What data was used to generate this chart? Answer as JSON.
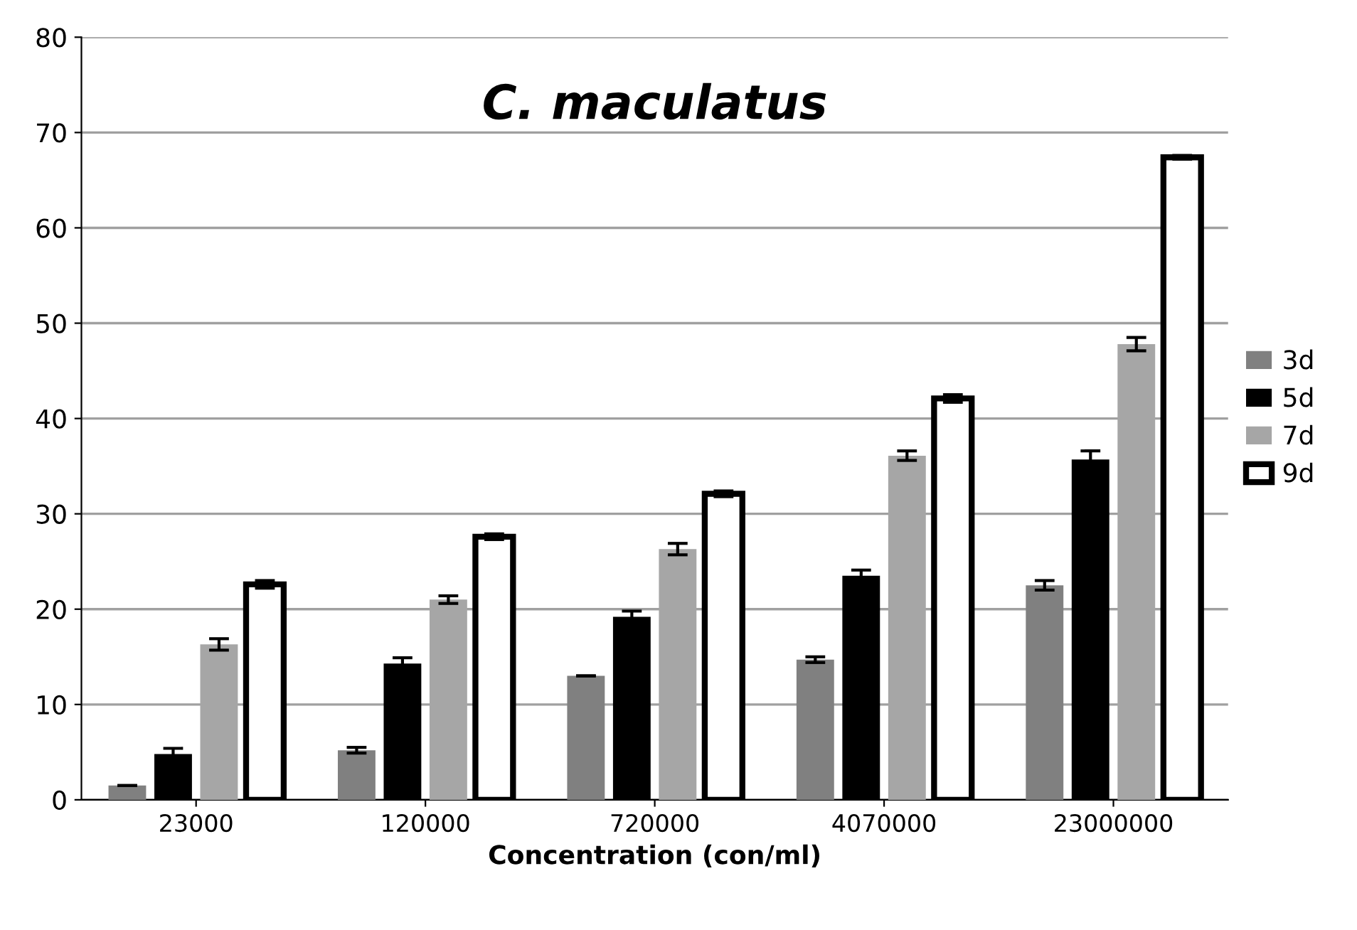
{
  "chart_data": {
    "type": "bar",
    "title": "C. maculatus",
    "xlabel": "Concentration (con/ml)",
    "categories": [
      "23000",
      "120000",
      "720000",
      "4070000",
      "23000000"
    ],
    "series": [
      {
        "name": "3d",
        "color": "#808080",
        "values": [
          1.5,
          5.2,
          13.0,
          14.7,
          22.5
        ],
        "errors": [
          null,
          0.3,
          null,
          0.3,
          0.5
        ]
      },
      {
        "name": "5d",
        "color": "#000000",
        "values": [
          4.8,
          14.3,
          19.2,
          23.5,
          35.7
        ],
        "errors": [
          0.6,
          0.6,
          0.6,
          0.6,
          0.9
        ]
      },
      {
        "name": "7d",
        "color": "#a6a6a6",
        "values": [
          16.3,
          21.0,
          26.3,
          36.1,
          47.8
        ],
        "errors": [
          0.6,
          0.4,
          0.6,
          0.5,
          0.7
        ]
      },
      {
        "name": "9d",
        "color": "#ffffff",
        "values": [
          22.6,
          27.6,
          32.1,
          42.1,
          67.4
        ],
        "errors": [
          0.4,
          0.3,
          0.3,
          0.4,
          0.2
        ]
      }
    ],
    "ylim": [
      0,
      80
    ],
    "yticks": [
      0,
      10,
      20,
      30,
      40,
      50,
      60,
      70,
      80
    ],
    "grid": "y",
    "legend": "right"
  }
}
